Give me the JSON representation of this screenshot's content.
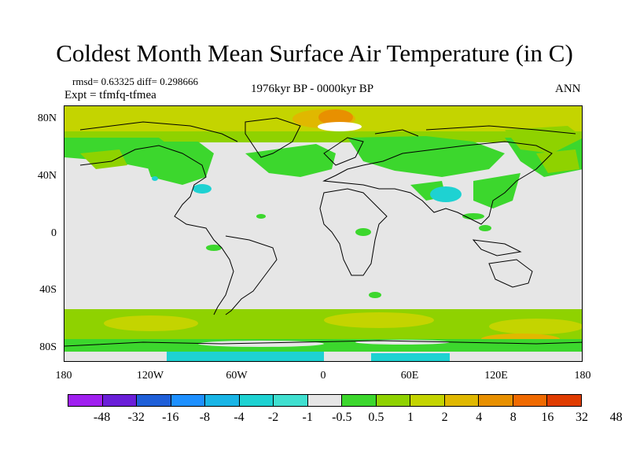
{
  "title": "Coldest Month Mean Surface Air Temperature (in C)",
  "stats": "rmsd= 0.63325  diff= 0.298666",
  "expt": "Expt = tfmfq-tfmea",
  "period": "1976kyr BP - 0000kyr BP",
  "season": "ANN",
  "lat_labels": [
    "80N",
    "40N",
    "0",
    "40S",
    "80S"
  ],
  "lon_labels": [
    "180",
    "120W",
    "60W",
    "0",
    "60E",
    "120E",
    "180"
  ],
  "colorbar": {
    "colors": [
      "#a020f0",
      "#6a1fd8",
      "#1f5fd8",
      "#1e90ff",
      "#19b5e6",
      "#1ed2d2",
      "#40e0d0",
      "#e6e6e6",
      "#3cd72d",
      "#8fd200",
      "#c4d400",
      "#e0b800",
      "#e89000",
      "#f06a00",
      "#e03c00"
    ],
    "labels": [
      "-48",
      "-32",
      "-16",
      "-8",
      "-4",
      "-2",
      "-1",
      "-0.5",
      "0.5",
      "1",
      "2",
      "4",
      "8",
      "16",
      "32",
      "48"
    ]
  },
  "colors": {
    "missing": "#e6e6e6",
    "green": "#3cd72d",
    "yellow_green": "#8fd200",
    "olive": "#c4d400",
    "orange": "#e0b800",
    "cyan": "#1ed2d2"
  }
}
